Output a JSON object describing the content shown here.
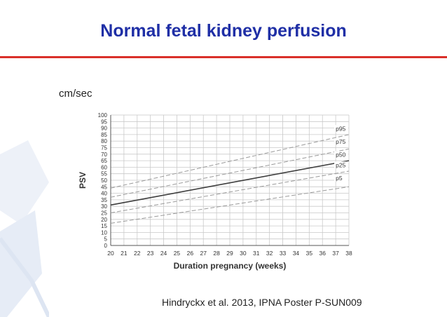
{
  "slide": {
    "title": "Normal fetal kidney perfusion",
    "unit_label": "cm/sec",
    "citation": "Hindryckx et al. 2013, IPNA Poster P-SUN009",
    "title_color": "#1f2fa6",
    "rule_color": "#d9302a"
  },
  "chart_data": {
    "type": "line",
    "xlabel": "Duration pregnancy (weeks)",
    "ylabel": "PSV",
    "xlim": [
      20,
      38
    ],
    "ylim": [
      0,
      100
    ],
    "x_ticks": [
      20,
      21,
      22,
      23,
      24,
      25,
      26,
      27,
      28,
      29,
      30,
      31,
      32,
      33,
      34,
      35,
      36,
      37,
      38
    ],
    "y_ticks": [
      0,
      5,
      10,
      15,
      20,
      25,
      30,
      35,
      40,
      45,
      50,
      55,
      60,
      65,
      70,
      75,
      80,
      85,
      90,
      95,
      100
    ],
    "grid": true,
    "series": [
      {
        "name": "p95",
        "x": [
          20,
          38
        ],
        "y": [
          44,
          85
        ],
        "style": "dashed"
      },
      {
        "name": "p75",
        "x": [
          20,
          38
        ],
        "y": [
          37,
          74
        ],
        "style": "dashed"
      },
      {
        "name": "p50",
        "x": [
          20,
          38
        ],
        "y": [
          31,
          65
        ],
        "style": "solid"
      },
      {
        "name": "p25",
        "x": [
          20,
          38
        ],
        "y": [
          25,
          57
        ],
        "style": "dashed"
      },
      {
        "name": "p5",
        "x": [
          20,
          38
        ],
        "y": [
          17,
          45
        ],
        "style": "dashed"
      }
    ],
    "curve_labels": [
      {
        "series": "p95",
        "text": "p95",
        "at_x": 37,
        "at_y": 88
      },
      {
        "series": "p75",
        "text": "p75",
        "at_x": 37,
        "at_y": 78
      },
      {
        "series": "p50",
        "text": "p50",
        "at_x": 37,
        "at_y": 68
      },
      {
        "series": "p25",
        "text": "p25",
        "at_x": 37,
        "at_y": 60
      },
      {
        "series": "p5",
        "text": "p5",
        "at_x": 37,
        "at_y": 50
      }
    ]
  }
}
